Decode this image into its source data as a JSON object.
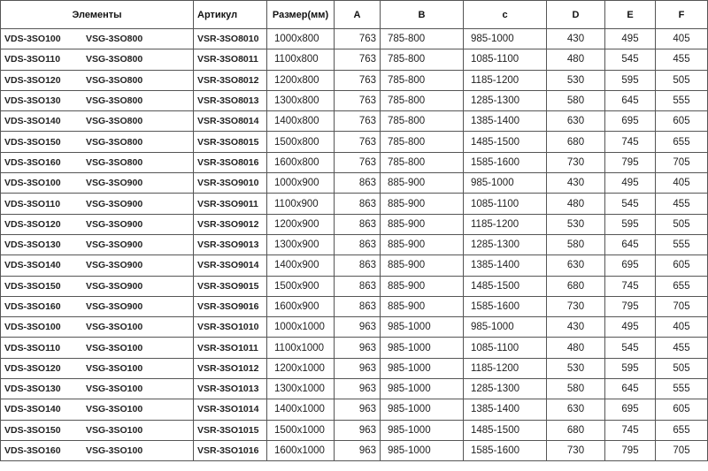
{
  "headers": [
    "Элементы",
    "Артикул",
    "Размер(мм)",
    "A",
    "B",
    "c",
    "D",
    "E",
    "F"
  ],
  "rows": [
    [
      "VDS-3SO100",
      "VSG-3SO800",
      "VSR-3SO8010",
      "1000x800",
      "763",
      "785-800",
      "985-1000",
      "430",
      "495",
      "405"
    ],
    [
      "VDS-3SO110",
      "VSG-3SO800",
      "VSR-3SO8011",
      "1100x800",
      "763",
      "785-800",
      "1085-1100",
      "480",
      "545",
      "455"
    ],
    [
      "VDS-3SO120",
      "VSG-3SO800",
      "VSR-3SO8012",
      "1200x800",
      "763",
      "785-800",
      "1185-1200",
      "530",
      "595",
      "505"
    ],
    [
      "VDS-3SO130",
      "VSG-3SO800",
      "VSR-3SO8013",
      "1300x800",
      "763",
      "785-800",
      "1285-1300",
      "580",
      "645",
      "555"
    ],
    [
      "VDS-3SO140",
      "VSG-3SO800",
      "VSR-3SO8014",
      "1400x800",
      "763",
      "785-800",
      "1385-1400",
      "630",
      "695",
      "605"
    ],
    [
      "VDS-3SO150",
      "VSG-3SO800",
      "VSR-3SO8015",
      "1500x800",
      "763",
      "785-800",
      "1485-1500",
      "680",
      "745",
      "655"
    ],
    [
      "VDS-3SO160",
      "VSG-3SO800",
      "VSR-3SO8016",
      "1600x800",
      "763",
      "785-800",
      "1585-1600",
      "730",
      "795",
      "705"
    ],
    [
      "VDS-3SO100",
      "VSG-3SO900",
      "VSR-3SO9010",
      "1000x900",
      "863",
      "885-900",
      "985-1000",
      "430",
      "495",
      "405"
    ],
    [
      "VDS-3SO110",
      "VSG-3SO900",
      "VSR-3SO9011",
      "1100x900",
      "863",
      "885-900",
      "1085-1100",
      "480",
      "545",
      "455"
    ],
    [
      "VDS-3SO120",
      "VSG-3SO900",
      "VSR-3SO9012",
      "1200x900",
      "863",
      "885-900",
      "1185-1200",
      "530",
      "595",
      "505"
    ],
    [
      "VDS-3SO130",
      "VSG-3SO900",
      "VSR-3SO9013",
      "1300x900",
      "863",
      "885-900",
      "1285-1300",
      "580",
      "645",
      "555"
    ],
    [
      "VDS-3SO140",
      "VSG-3SO900",
      "VSR-3SO9014",
      "1400x900",
      "863",
      "885-900",
      "1385-1400",
      "630",
      "695",
      "605"
    ],
    [
      "VDS-3SO150",
      "VSG-3SO900",
      "VSR-3SO9015",
      "1500x900",
      "863",
      "885-900",
      "1485-1500",
      "680",
      "745",
      "655"
    ],
    [
      "VDS-3SO160",
      "VSG-3SO900",
      "VSR-3SO9016",
      "1600x900",
      "863",
      "885-900",
      "1585-1600",
      "730",
      "795",
      "705"
    ],
    [
      "VDS-3SO100",
      "VSG-3SO100",
      "VSR-3SO1010",
      "1000x1000",
      "963",
      "985-1000",
      "985-1000",
      "430",
      "495",
      "405"
    ],
    [
      "VDS-3SO110",
      "VSG-3SO100",
      "VSR-3SO1011",
      "1100x1000",
      "963",
      "985-1000",
      "1085-1100",
      "480",
      "545",
      "455"
    ],
    [
      "VDS-3SO120",
      "VSG-3SO100",
      "VSR-3SO1012",
      "1200x1000",
      "963",
      "985-1000",
      "1185-1200",
      "530",
      "595",
      "505"
    ],
    [
      "VDS-3SO130",
      "VSG-3SO100",
      "VSR-3SO1013",
      "1300x1000",
      "963",
      "985-1000",
      "1285-1300",
      "580",
      "645",
      "555"
    ],
    [
      "VDS-3SO140",
      "VSG-3SO100",
      "VSR-3SO1014",
      "1400x1000",
      "963",
      "985-1000",
      "1385-1400",
      "630",
      "695",
      "605"
    ],
    [
      "VDS-3SO150",
      "VSG-3SO100",
      "VSR-3SO1015",
      "1500x1000",
      "963",
      "985-1000",
      "1485-1500",
      "680",
      "745",
      "655"
    ],
    [
      "VDS-3SO160",
      "VSG-3SO100",
      "VSR-3SO1016",
      "1600x1000",
      "963",
      "985-1000",
      "1585-1600",
      "730",
      "795",
      "705"
    ]
  ]
}
